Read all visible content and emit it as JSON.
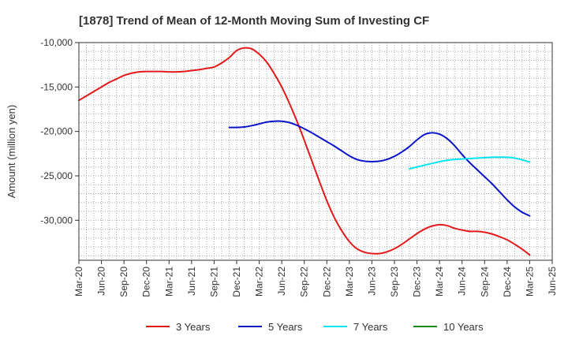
{
  "chart_data": {
    "type": "line",
    "title": "[1878]  Trend of Mean of 12-Month Moving Sum of Investing CF",
    "xlabel": "",
    "ylabel": "Amount (million yen)",
    "ylim": [
      -34500,
      -10000
    ],
    "yticks": [
      -10000,
      -15000,
      -20000,
      -25000,
      -30000
    ],
    "ytick_labels": [
      "-10,000",
      "-15,000",
      "-20,000",
      "-25,000",
      "-30,000"
    ],
    "xlim": [
      "2020-03",
      "2025-06"
    ],
    "xtick_labels": [
      "Mar-20",
      "Jun-20",
      "Sep-20",
      "Dec-20",
      "Mar-21",
      "Jun-21",
      "Sep-21",
      "Dec-21",
      "Mar-22",
      "Jun-22",
      "Sep-22",
      "Dec-22",
      "Mar-23",
      "Jun-23",
      "Sep-23",
      "Dec-23",
      "Mar-24",
      "Jun-24",
      "Sep-24",
      "Dec-24",
      "Mar-25",
      "Jun-25"
    ],
    "grid": true,
    "legend_position": "bottom",
    "series": [
      {
        "name": "3 Years",
        "color": "#e31a1c",
        "x": [
          "2020-03",
          "2020-04",
          "2020-05",
          "2020-06",
          "2020-07",
          "2020-08",
          "2020-09",
          "2020-10",
          "2020-11",
          "2020-12",
          "2021-01",
          "2021-02",
          "2021-03",
          "2021-04",
          "2021-05",
          "2021-06",
          "2021-07",
          "2021-08",
          "2021-09",
          "2021-10",
          "2021-11",
          "2021-12",
          "2022-01",
          "2022-02",
          "2022-03",
          "2022-04",
          "2022-05",
          "2022-06",
          "2022-07",
          "2022-08",
          "2022-09",
          "2022-10",
          "2022-11",
          "2022-12",
          "2023-01",
          "2023-02",
          "2023-03",
          "2023-04",
          "2023-05",
          "2023-06",
          "2023-07",
          "2023-08",
          "2023-09",
          "2023-10",
          "2023-11",
          "2023-12",
          "2024-01",
          "2024-02",
          "2024-03",
          "2024-04",
          "2024-05",
          "2024-06",
          "2024-07",
          "2024-08",
          "2024-09",
          "2024-10",
          "2024-11",
          "2024-12",
          "2025-01",
          "2025-02",
          "2025-03"
        ],
        "values": [
          -16500,
          -16000,
          -15500,
          -15000,
          -14500,
          -14100,
          -13700,
          -13450,
          -13300,
          -13250,
          -13250,
          -13250,
          -13300,
          -13300,
          -13250,
          -13150,
          -13050,
          -12900,
          -12750,
          -12300,
          -11700,
          -10900,
          -10600,
          -10700,
          -11300,
          -12200,
          -13500,
          -15000,
          -16800,
          -18800,
          -21000,
          -23300,
          -25600,
          -27800,
          -29700,
          -31200,
          -32400,
          -33200,
          -33600,
          -33750,
          -33750,
          -33550,
          -33200,
          -32700,
          -32100,
          -31500,
          -31000,
          -30650,
          -30500,
          -30600,
          -30900,
          -31100,
          -31250,
          -31250,
          -31350,
          -31550,
          -31850,
          -32200,
          -32700,
          -33250,
          -33900
        ]
      },
      {
        "name": "5 Years",
        "color": "#0a14c8",
        "x": [
          "2021-11",
          "2021-12",
          "2022-01",
          "2022-02",
          "2022-03",
          "2022-04",
          "2022-05",
          "2022-06",
          "2022-07",
          "2022-08",
          "2022-09",
          "2022-10",
          "2022-11",
          "2022-12",
          "2023-01",
          "2023-02",
          "2023-03",
          "2023-04",
          "2023-05",
          "2023-06",
          "2023-07",
          "2023-08",
          "2023-09",
          "2023-10",
          "2023-11",
          "2023-12",
          "2024-01",
          "2024-02",
          "2024-03",
          "2024-04",
          "2024-05",
          "2024-06",
          "2024-07",
          "2024-08",
          "2024-09",
          "2024-10",
          "2024-11",
          "2024-12",
          "2025-01",
          "2025-02",
          "2025-03"
        ],
        "values": [
          -19550,
          -19550,
          -19500,
          -19350,
          -19150,
          -18950,
          -18850,
          -18850,
          -19000,
          -19300,
          -19700,
          -20150,
          -20650,
          -21150,
          -21650,
          -22200,
          -22750,
          -23150,
          -23350,
          -23400,
          -23350,
          -23150,
          -22800,
          -22300,
          -21700,
          -20950,
          -20350,
          -20150,
          -20300,
          -20800,
          -21600,
          -22600,
          -23500,
          -24300,
          -25100,
          -25900,
          -26800,
          -27700,
          -28500,
          -29100,
          -29500
        ]
      },
      {
        "name": "7 Years",
        "color": "#00e5ee",
        "x": [
          "2023-11",
          "2023-12",
          "2024-01",
          "2024-02",
          "2024-03",
          "2024-04",
          "2024-05",
          "2024-06",
          "2024-07",
          "2024-08",
          "2024-09",
          "2024-10",
          "2024-11",
          "2024-12",
          "2025-01",
          "2025-02",
          "2025-03"
        ],
        "values": [
          -24200,
          -24000,
          -23800,
          -23600,
          -23400,
          -23250,
          -23150,
          -23100,
          -23050,
          -23000,
          -22950,
          -22900,
          -22900,
          -22900,
          -23000,
          -23200,
          -23450
        ]
      },
      {
        "name": "10 Years",
        "color": "#1a8a1a",
        "x": [],
        "values": []
      }
    ]
  }
}
